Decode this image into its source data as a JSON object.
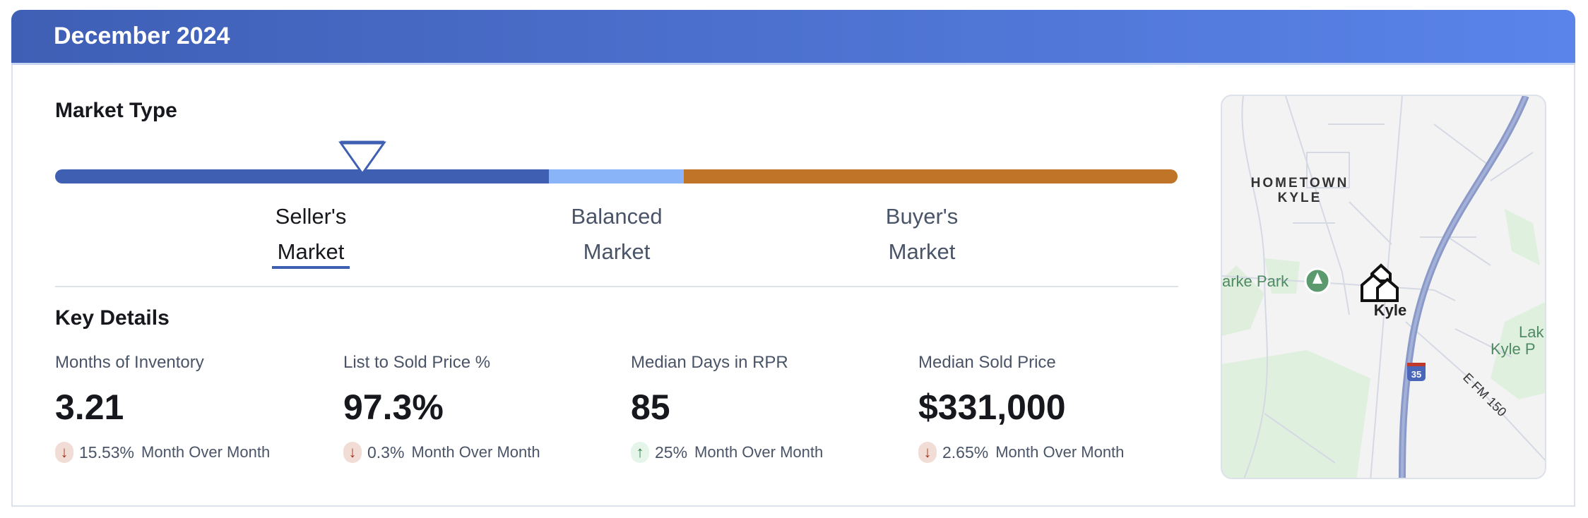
{
  "header": {
    "title": "December 2024"
  },
  "market_type": {
    "title": "Market Type",
    "indicator_position_percent": 26,
    "segments": [
      {
        "line1": "Seller's",
        "line2": "Market",
        "color": "#3f60b2",
        "active": true
      },
      {
        "line1": "Balanced",
        "line2": "Market",
        "color": "#8ab4f8",
        "active": false
      },
      {
        "line1": "Buyer's",
        "line2": "Market",
        "color": "#c07428",
        "active": false
      }
    ]
  },
  "key_details": {
    "title": "Key Details",
    "metrics": [
      {
        "label": "Months of Inventory",
        "value": "3.21",
        "direction": "down",
        "change": "15.53%",
        "period": "Month Over Month"
      },
      {
        "label": "List to Sold Price %",
        "value": "97.3%",
        "direction": "down",
        "change": "0.3%",
        "period": "Month Over Month"
      },
      {
        "label": "Median Days in RPR",
        "value": "85",
        "direction": "up",
        "change": "25%",
        "period": "Month Over Month"
      },
      {
        "label": "Median Sold Price",
        "value": "$331,000",
        "direction": "down",
        "change": "2.65%",
        "period": "Month Over Month"
      }
    ]
  },
  "map": {
    "labels": {
      "neighborhood1": "HOMETOWN",
      "neighborhood2": "KYLE",
      "park": "arke Park",
      "city": "Kyle",
      "lake1": "Lak",
      "lake2": "Kyle P",
      "highway": "35",
      "road": "E FM 150"
    }
  },
  "colors": {
    "header_start": "#3f5fb5",
    "header_end": "#5a84ea",
    "down": "#a4361a",
    "up": "#2e7d43"
  }
}
